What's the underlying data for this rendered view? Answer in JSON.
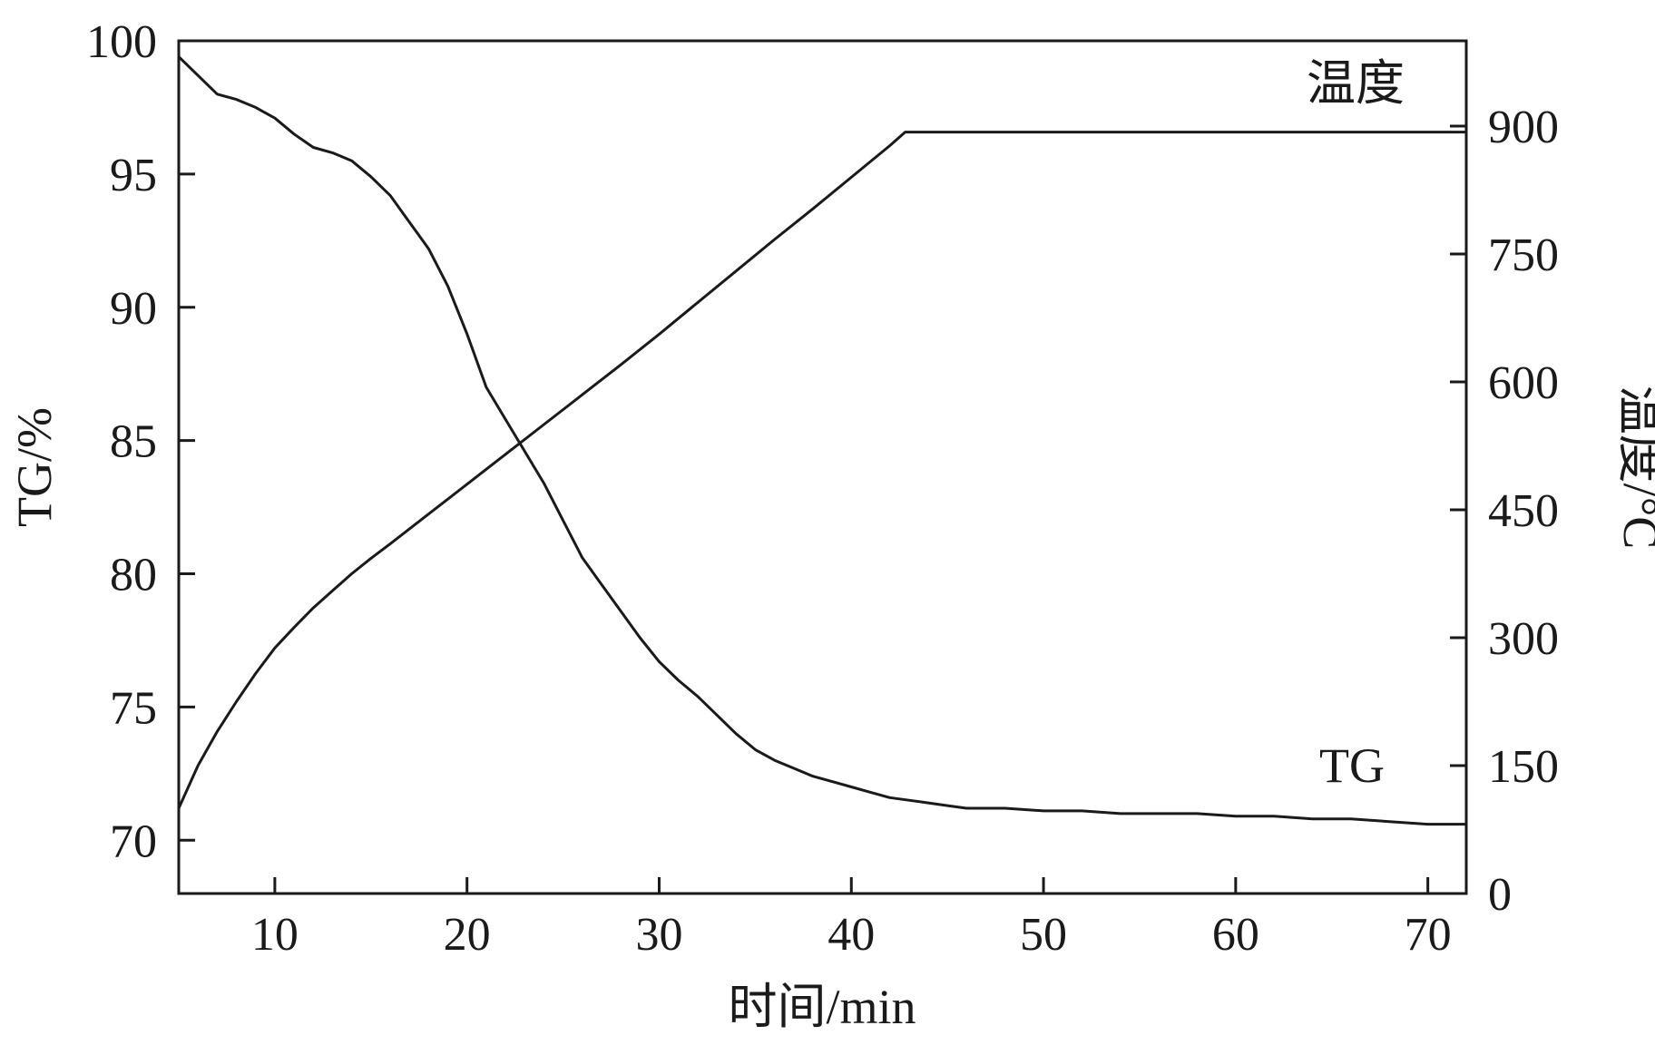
{
  "chart_data": {
    "type": "line",
    "title": "",
    "xlabel": "时间/min",
    "ylabel_left": "TG/%",
    "ylabel_right": "温度/°C",
    "xlim": [
      5,
      72
    ],
    "ylim_left": [
      68,
      100
    ],
    "ylim_right": [
      0,
      1000
    ],
    "x_ticks": [
      10,
      20,
      30,
      40,
      50,
      60,
      70
    ],
    "y_left_ticks": [
      70,
      75,
      80,
      85,
      90,
      95,
      100
    ],
    "y_right_ticks": [
      0,
      150,
      300,
      450,
      600,
      750,
      900
    ],
    "x_tick_labels": [
      "10",
      "20",
      "30",
      "40",
      "50",
      "60",
      "70"
    ],
    "y_left_tick_labels": [
      "70",
      "75",
      "80",
      "85",
      "90",
      "95",
      "100"
    ],
    "y_right_tick_labels": [
      "0",
      "150",
      "300",
      "450",
      "600",
      "750",
      "900"
    ],
    "grid": false,
    "legend": "none",
    "series": [
      {
        "name": "TG",
        "axis": "left",
        "x": [
          5,
          6,
          7,
          8,
          9,
          10,
          11,
          12,
          13,
          14,
          15,
          16,
          17,
          18,
          19,
          20,
          21,
          22,
          23,
          24,
          25,
          26,
          27,
          28,
          29,
          30,
          31,
          32,
          33,
          34,
          35,
          36,
          37,
          38,
          39,
          40,
          41,
          42,
          43,
          44,
          45,
          46,
          48,
          50,
          52,
          54,
          56,
          58,
          60,
          62,
          64,
          66,
          68,
          70,
          72
        ],
        "y": [
          99.4,
          98.7,
          98.0,
          97.8,
          97.5,
          97.1,
          96.5,
          96.0,
          95.8,
          95.5,
          94.9,
          94.2,
          93.2,
          92.2,
          90.8,
          89.0,
          87.0,
          85.8,
          84.6,
          83.4,
          82.0,
          80.6,
          79.6,
          78.6,
          77.6,
          76.7,
          76.0,
          75.4,
          74.7,
          74.0,
          73.4,
          73.0,
          72.7,
          72.4,
          72.2,
          72.0,
          71.8,
          71.6,
          71.5,
          71.4,
          71.3,
          71.2,
          71.2,
          71.1,
          71.1,
          71.0,
          71.0,
          71.0,
          70.9,
          70.9,
          70.8,
          70.8,
          70.7,
          70.6,
          70.6
        ]
      },
      {
        "name": "温度",
        "axis": "right",
        "x": [
          5,
          6,
          7,
          8,
          9,
          10,
          11,
          12,
          13,
          14,
          15,
          16,
          18,
          20,
          22,
          24,
          26,
          28,
          30,
          32,
          34,
          36,
          38,
          40,
          42,
          42.8,
          46,
          72
        ],
        "y": [
          100,
          150,
          190,
          225,
          258,
          288,
          312,
          335,
          355,
          375,
          393,
          410,
          445,
          480,
          515,
          550,
          585,
          620,
          656,
          693,
          730,
          767,
          803,
          840,
          877,
          893,
          893,
          893
        ]
      }
    ]
  }
}
